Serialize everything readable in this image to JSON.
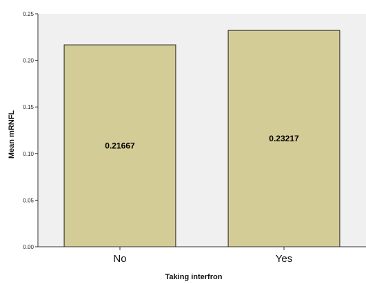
{
  "chart_data": {
    "type": "bar",
    "title": "",
    "xlabel": "Taking interfron",
    "ylabel": "Mean mRNFL",
    "categories": [
      "No",
      "Yes"
    ],
    "values": [
      0.21667,
      0.23217
    ],
    "data_labels": [
      "0.21667",
      "0.23217"
    ],
    "ylim": [
      0,
      0.25
    ],
    "yticks": [
      0.0,
      0.05,
      0.1,
      0.15,
      0.2,
      0.25
    ],
    "ytick_labels": [
      "0.00",
      "0.05",
      "0.10",
      "0.15",
      "0.20",
      "0.25"
    ],
    "grid": false,
    "legend": "none",
    "colors": {
      "plot_background": "#f0f0f0",
      "bar_fill": "#d4cc97",
      "bar_stroke": "#222222",
      "axis": "#333333"
    }
  }
}
